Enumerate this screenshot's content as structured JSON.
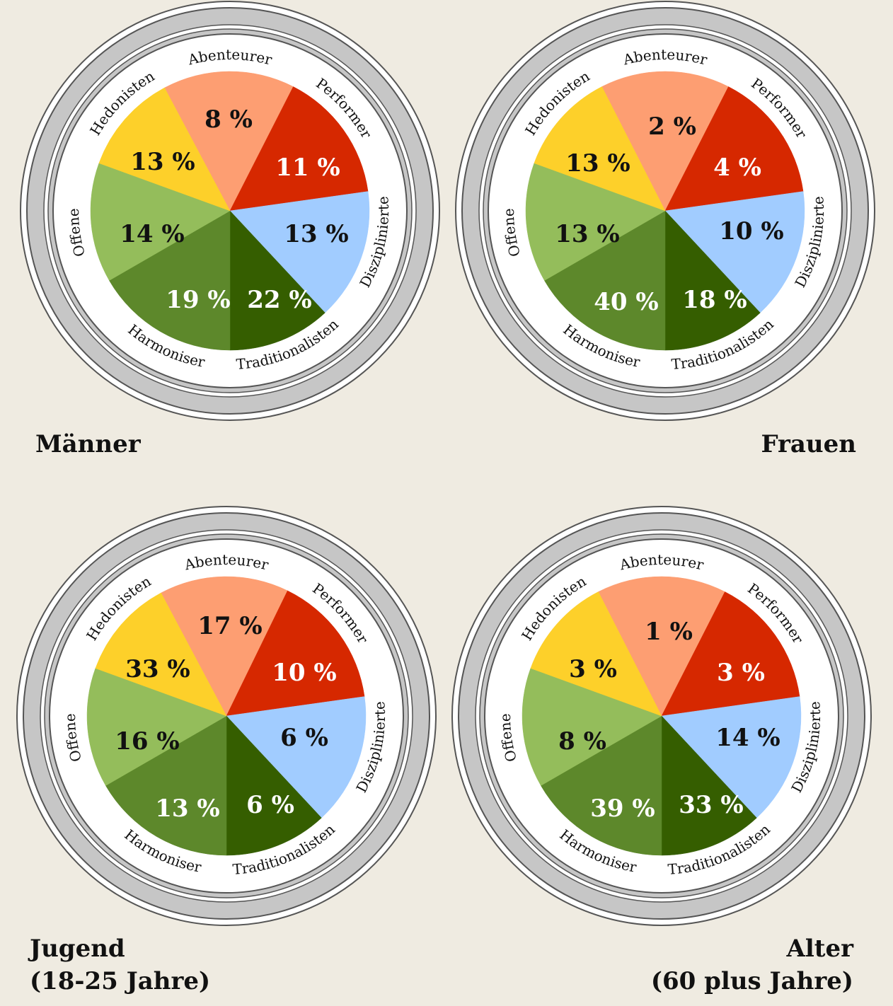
{
  "segments": [
    {
      "key": "abenteurer",
      "label": "Abenteurer",
      "color": "#fd9e72"
    },
    {
      "key": "performer",
      "label": "Performer",
      "color": "#d62800"
    },
    {
      "key": "disziplinierte",
      "label": "Disziplinierte",
      "color": "#a1ccff"
    },
    {
      "key": "traditionalisten",
      "label": "Traditionalisten",
      "color": "#355e00"
    },
    {
      "key": "harmoniser",
      "label": "Harmoniser",
      "color": "#5d882b"
    },
    {
      "key": "offene",
      "label": "Offene",
      "color": "#94bd5b"
    },
    {
      "key": "hedonisten",
      "label": "Hedonisten",
      "color": "#fdd02a"
    }
  ],
  "chart_data": [
    {
      "type": "pie",
      "caption": [
        "Männer"
      ],
      "labels": [
        "Abenteurer",
        "Performer",
        "Disziplinierte",
        "Traditionalisten",
        "Harmoniser",
        "Offene",
        "Hedonisten"
      ],
      "values": [
        8,
        11,
        13,
        22,
        19,
        14,
        13
      ],
      "value_labels": [
        "8 %",
        "11 %",
        "13 %",
        "22 %",
        "19 %",
        "14 %",
        "13 %"
      ]
    },
    {
      "type": "pie",
      "caption": [
        "Frauen"
      ],
      "labels": [
        "Abenteurer",
        "Performer",
        "Disziplinierte",
        "Traditionalisten",
        "Harmoniser",
        "Offene",
        "Hedonisten"
      ],
      "values": [
        2,
        4,
        10,
        18,
        40,
        13,
        13
      ],
      "value_labels": [
        "2 %",
        "4 %",
        "10 %",
        "18 %",
        "40 %",
        "13 %",
        "13 %"
      ]
    },
    {
      "type": "pie",
      "caption": [
        "Jugend",
        "(18-25 Jahre)"
      ],
      "labels": [
        "Abenteurer",
        "Performer",
        "Disziplinierte",
        "Traditionalisten",
        "Harmoniser",
        "Offene",
        "Hedonisten"
      ],
      "values": [
        17,
        10,
        6,
        6,
        13,
        16,
        33
      ],
      "value_labels": [
        "17 %",
        "10 %",
        "6 %",
        "6 %",
        "13 %",
        "16 %",
        "33 %"
      ]
    },
    {
      "type": "pie",
      "caption": [
        "Alter",
        "(60 plus Jahre)"
      ],
      "labels": [
        "Abenteurer",
        "Performer",
        "Disziplinierte",
        "Traditionalisten",
        "Harmoniser",
        "Offene",
        "Hedonisten"
      ],
      "values": [
        1,
        3,
        14,
        33,
        39,
        8,
        3
      ],
      "value_labels": [
        "1 %",
        "3 %",
        "14 %",
        "33 %",
        "39 %",
        "8 %",
        "3 %"
      ]
    }
  ]
}
